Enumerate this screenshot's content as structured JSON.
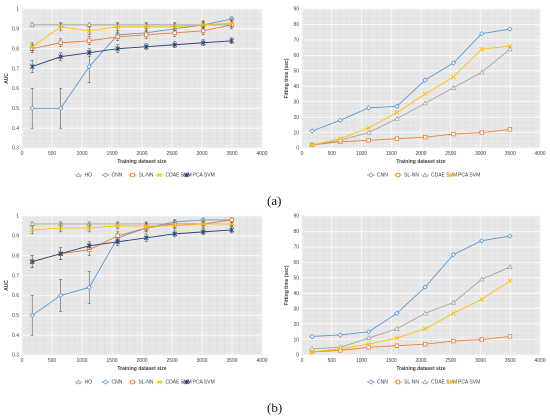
{
  "labels": {
    "a": "(a)",
    "b": "(b)"
  },
  "chart_data": [
    {
      "id": "a-left",
      "type": "line",
      "title": "",
      "xlabel": "Training dataset size",
      "ylabel": "AUC",
      "xlim": [
        0,
        4000
      ],
      "ylim": [
        0.3,
        1.0
      ],
      "xticks": [
        0,
        500,
        1000,
        1500,
        2000,
        2500,
        3000,
        3500,
        4000
      ],
      "yticks": [
        0.3,
        0.4,
        0.5,
        0.6,
        0.7,
        0.8,
        0.9,
        1
      ],
      "grid": true,
      "legend_position": "bottom",
      "x": [
        170,
        645,
        1120,
        1595,
        2070,
        2545,
        3020,
        3495
      ],
      "series": [
        {
          "name": "HO",
          "color": "#a5a5a5",
          "marker": "triangle",
          "values": [
            0.92,
            0.92,
            0.92,
            0.92,
            0.92,
            0.92,
            0.92,
            0.92
          ],
          "err": [
            0.01,
            0.01,
            0.01,
            0.01,
            0.01,
            0.01,
            0.01,
            0.01
          ]
        },
        {
          "name": "CNN",
          "color": "#5b9bd5",
          "marker": "diamond",
          "values": [
            0.5,
            0.5,
            0.71,
            0.87,
            0.88,
            0.9,
            0.92,
            0.95
          ],
          "err": [
            0.1,
            0.1,
            0.08,
            0.02,
            0.02,
            0.015,
            0.015,
            0.01
          ]
        },
        {
          "name": "SL-NN",
          "color": "#ed7d31",
          "marker": "square",
          "values": [
            0.8,
            0.83,
            0.84,
            0.86,
            0.87,
            0.88,
            0.89,
            0.92
          ],
          "err": [
            0.02,
            0.02,
            0.02,
            0.02,
            0.02,
            0.02,
            0.02,
            0.02
          ]
        },
        {
          "name": "CDAE SVM",
          "color": "#ffc000",
          "marker": "x",
          "values": [
            0.81,
            0.91,
            0.89,
            0.91,
            0.91,
            0.91,
            0.92,
            0.93
          ],
          "err": [
            0.02,
            0.02,
            0.02,
            0.02,
            0.02,
            0.02,
            0.02,
            0.02
          ]
        },
        {
          "name": "PCA SVM",
          "color": "#264478",
          "marker": "star",
          "values": [
            0.71,
            0.76,
            0.78,
            0.8,
            0.81,
            0.82,
            0.83,
            0.84
          ],
          "err": [
            0.03,
            0.02,
            0.02,
            0.02,
            0.015,
            0.015,
            0.015,
            0.015
          ]
        }
      ]
    },
    {
      "id": "a-right",
      "type": "line",
      "title": "",
      "xlabel": "Training dataset size",
      "ylabel": "Fitting time (sec)",
      "xlim": [
        0,
        4000
      ],
      "ylim": [
        0,
        90
      ],
      "xticks": [
        0,
        500,
        1000,
        1500,
        2000,
        2500,
        3000,
        3500,
        4000
      ],
      "yticks": [
        0,
        10,
        20,
        30,
        40,
        50,
        60,
        70,
        80,
        90
      ],
      "grid": true,
      "legend_position": "bottom",
      "x": [
        170,
        645,
        1120,
        1595,
        2070,
        2545,
        3020,
        3495
      ],
      "series": [
        {
          "name": "CNN",
          "color": "#5b9bd5",
          "marker": "diamond",
          "values": [
            11,
            18,
            26,
            27,
            44,
            55,
            74,
            77
          ]
        },
        {
          "name": "SL-NN",
          "color": "#ed7d31",
          "marker": "square",
          "values": [
            2,
            4,
            5,
            6,
            7,
            9,
            10,
            12
          ]
        },
        {
          "name": "CDAE SVM",
          "color": "#a5a5a5",
          "marker": "triangle",
          "values": [
            2,
            5,
            10,
            19,
            29,
            39,
            49,
            64
          ]
        },
        {
          "name": "PCA SVM",
          "color": "#ffc000",
          "marker": "x",
          "values": [
            2,
            6,
            13,
            23,
            35,
            46,
            64,
            66
          ]
        }
      ]
    },
    {
      "id": "b-left",
      "type": "line",
      "title": "",
      "xlabel": "Training dataset size",
      "ylabel": "AUC",
      "xlim": [
        0,
        4000
      ],
      "ylim": [
        0.3,
        1.0
      ],
      "xticks": [
        0,
        500,
        1000,
        1500,
        2000,
        2500,
        3000,
        3500,
        4000
      ],
      "yticks": [
        0.3,
        0.4,
        0.5,
        0.6,
        0.7,
        0.8,
        0.9,
        1
      ],
      "grid": true,
      "legend_position": "bottom",
      "x": [
        170,
        645,
        1120,
        1595,
        2070,
        2545,
        3020,
        3495
      ],
      "series": [
        {
          "name": "HO",
          "color": "#a5a5a5",
          "marker": "triangle",
          "values": [
            0.96,
            0.96,
            0.96,
            0.96,
            0.96,
            0.96,
            0.96,
            0.96
          ],
          "err": [
            0.01,
            0.01,
            0.01,
            0.01,
            0.01,
            0.01,
            0.01,
            0.01
          ]
        },
        {
          "name": "CNN",
          "color": "#5b9bd5",
          "marker": "diamond",
          "values": [
            0.5,
            0.6,
            0.64,
            0.89,
            0.94,
            0.97,
            0.98,
            0.98
          ],
          "err": [
            0.1,
            0.08,
            0.08,
            0.02,
            0.015,
            0.01,
            0.01,
            0.01
          ]
        },
        {
          "name": "SL-NN",
          "color": "#ed7d31",
          "marker": "square",
          "values": [
            0.77,
            0.81,
            0.83,
            0.9,
            0.94,
            0.96,
            0.96,
            0.98
          ],
          "err": [
            0.03,
            0.03,
            0.03,
            0.02,
            0.02,
            0.02,
            0.02,
            0.01
          ]
        },
        {
          "name": "CDAE SVM",
          "color": "#ffc000",
          "marker": "x",
          "values": [
            0.93,
            0.94,
            0.94,
            0.95,
            0.95,
            0.95,
            0.96,
            0.96
          ],
          "err": [
            0.02,
            0.02,
            0.02,
            0.015,
            0.015,
            0.015,
            0.01,
            0.01
          ]
        },
        {
          "name": "PCA SVM",
          "color": "#264478",
          "marker": "star",
          "values": [
            0.77,
            0.81,
            0.85,
            0.87,
            0.89,
            0.91,
            0.92,
            0.93
          ],
          "err": [
            0.03,
            0.03,
            0.02,
            0.02,
            0.02,
            0.015,
            0.015,
            0.015
          ]
        }
      ]
    },
    {
      "id": "b-right",
      "type": "line",
      "title": "",
      "xlabel": "Training dataset size",
      "ylabel": "Fitting time (sec)",
      "xlim": [
        0,
        4000
      ],
      "ylim": [
        0,
        90
      ],
      "xticks": [
        0,
        500,
        1000,
        1500,
        2000,
        2500,
        3000,
        3500,
        4000
      ],
      "yticks": [
        0,
        10,
        20,
        30,
        40,
        50,
        60,
        70,
        80,
        90
      ],
      "grid": true,
      "legend_position": "bottom",
      "x": [
        170,
        645,
        1120,
        1595,
        2070,
        2545,
        3020,
        3495
      ],
      "series": [
        {
          "name": "CNN",
          "color": "#5b9bd5",
          "marker": "diamond",
          "values": [
            12,
            13,
            15,
            27,
            44,
            65,
            74,
            77
          ]
        },
        {
          "name": "SL-NN",
          "color": "#ed7d31",
          "marker": "square",
          "values": [
            2,
            3,
            5,
            6,
            7,
            9,
            10,
            12
          ]
        },
        {
          "name": "CDAE SVM",
          "color": "#a5a5a5",
          "marker": "triangle",
          "values": [
            4,
            5,
            11,
            17,
            27,
            34,
            49,
            57
          ]
        },
        {
          "name": "PCA SVM",
          "color": "#ffc000",
          "marker": "x",
          "values": [
            2,
            4,
            7,
            11,
            17,
            27,
            36,
            48
          ]
        }
      ]
    }
  ]
}
